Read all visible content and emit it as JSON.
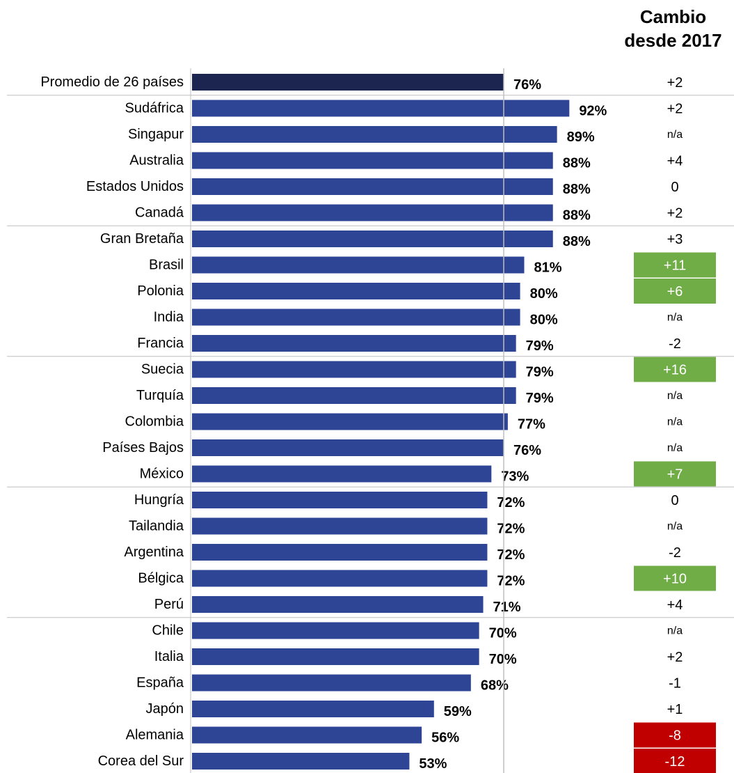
{
  "header": {
    "line1": "Cambio",
    "line2": "desde 2017"
  },
  "colors": {
    "average_bar": "#1b2550",
    "country_bar": "#2e4596",
    "positive_highlight": "#70ad47",
    "negative_highlight": "#c00000",
    "separator": "#bfbfbf",
    "reference_line": "#bfbfbf"
  },
  "chart_data": {
    "type": "bar",
    "orientation": "horizontal",
    "reference_line_value": 76,
    "categories": [
      "Promedio de 26 países",
      "Sudáfrica",
      "Singapur",
      "Australia",
      "Estados Unidos",
      "Canadá",
      "Gran Bretaña",
      "Brasil",
      "Polonia",
      "India",
      "Francia",
      "Suecia",
      "Turquía",
      "Colombia",
      "Países Bajos",
      "México",
      "Hungría",
      "Tailandia",
      "Argentina",
      "Bélgica",
      "Perú",
      "Chile",
      "Italia",
      "España",
      "Japón",
      "Alemania",
      "Corea del Sur"
    ],
    "values": [
      76,
      92,
      89,
      88,
      88,
      88,
      88,
      81,
      80,
      80,
      79,
      79,
      79,
      77,
      76,
      73,
      72,
      72,
      72,
      72,
      71,
      70,
      70,
      68,
      59,
      56,
      53
    ],
    "value_labels": [
      "76%",
      "92%",
      "89%",
      "88%",
      "88%",
      "88%",
      "88%",
      "81%",
      "80%",
      "80%",
      "79%",
      "79%",
      "79%",
      "77%",
      "76%",
      "73%",
      "72%",
      "72%",
      "72%",
      "72%",
      "71%",
      "70%",
      "70%",
      "68%",
      "59%",
      "56%",
      "53%"
    ],
    "change_since_2017": [
      "+2",
      "+2",
      "n/a",
      "+4",
      "0",
      "+2",
      "+3",
      "+11",
      "+6",
      "n/a",
      "-2",
      "+16",
      "n/a",
      "n/a",
      "n/a",
      "+7",
      "0",
      "n/a",
      "-2",
      "+10",
      "+4",
      "n/a",
      "+2",
      "-1",
      "+1",
      "-8",
      "-12"
    ],
    "change_highlight": [
      "",
      "",
      "",
      "",
      "",
      "",
      "",
      "positive",
      "positive",
      "",
      "",
      "positive",
      "",
      "",
      "",
      "positive",
      "",
      "",
      "",
      "positive",
      "",
      "",
      "",
      "",
      "",
      "negative",
      "negative"
    ]
  }
}
